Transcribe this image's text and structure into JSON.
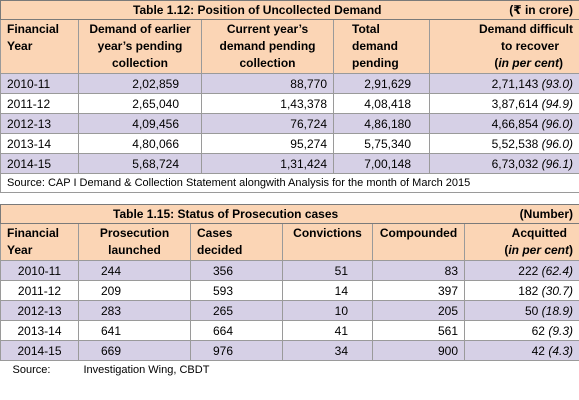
{
  "table1": {
    "title": "Table 1.12: Position of Uncollected Demand",
    "unit": "(₹ in crore)",
    "headers": [
      [
        "Financial",
        "Year",
        ""
      ],
      [
        "Demand of earlier",
        "year’s pending",
        "collection"
      ],
      [
        "Current year’s",
        "demand pending",
        "collection"
      ],
      [
        "Total",
        "demand",
        "pending"
      ],
      [
        "Demand difficult",
        "to recover",
        "(in per cent)"
      ]
    ],
    "rows": [
      {
        "year": "2010-11",
        "earlier": "2,02,859",
        "current": "88,770",
        "total": "2,91,629",
        "difficult": "2,71,143",
        "pct": "(93.0)"
      },
      {
        "year": "2011-12",
        "earlier": "2,65,040",
        "current": "1,43,378",
        "total": "4,08,418",
        "difficult": "3,87,614",
        "pct": "(94.9)"
      },
      {
        "year": "2012-13",
        "earlier": "4,09,456",
        "current": "76,724",
        "total": "4,86,180",
        "difficult": "4,66,854",
        "pct": "(96.0)"
      },
      {
        "year": "2013-14",
        "earlier": "4,80,066",
        "current": "95,274",
        "total": "5,75,340",
        "difficult": "5,52,538",
        "pct": "(96.0)"
      },
      {
        "year": "2014-15",
        "earlier": "5,68,724",
        "current": "1,31,424",
        "total": "7,00,148",
        "difficult": "6,73,032",
        "pct": "(96.1)"
      }
    ],
    "source": "Source: CAP I Demand & Collection Statement alongwith Analysis for the month of March 2015"
  },
  "table2": {
    "title": "Table 1.15: Status of Prosecution cases",
    "unit": "(Number)",
    "headers": [
      [
        "Financial",
        "Year"
      ],
      [
        "Prosecution",
        "launched"
      ],
      [
        "Cases",
        "decided"
      ],
      [
        "Convictions",
        ""
      ],
      [
        "Compounded",
        ""
      ],
      [
        "Acquitted",
        "(in per cent)"
      ]
    ],
    "rows": [
      {
        "year": "2010-11",
        "launched": "244",
        "decided": "356",
        "convictions": "51",
        "compounded": "83",
        "acquitted": "222",
        "pct": "(62.4)"
      },
      {
        "year": "2011-12",
        "launched": "209",
        "decided": "593",
        "convictions": "14",
        "compounded": "397",
        "acquitted": "182",
        "pct": "(30.7)"
      },
      {
        "year": "2012-13",
        "launched": "283",
        "decided": "265",
        "convictions": "10",
        "compounded": "205",
        "acquitted": "50",
        "pct": "(18.9)"
      },
      {
        "year": "2013-14",
        "launched": "641",
        "decided": "664",
        "convictions": "41",
        "compounded": "561",
        "acquitted": "62",
        "pct": "(9.3)"
      },
      {
        "year": "2014-15",
        "launched": "669",
        "decided": "976",
        "convictions": "34",
        "compounded": "900",
        "acquitted": "42",
        "pct": "(4.3)"
      }
    ],
    "source_label": "Source:",
    "source_text": "Investigation Wing, CBDT"
  }
}
